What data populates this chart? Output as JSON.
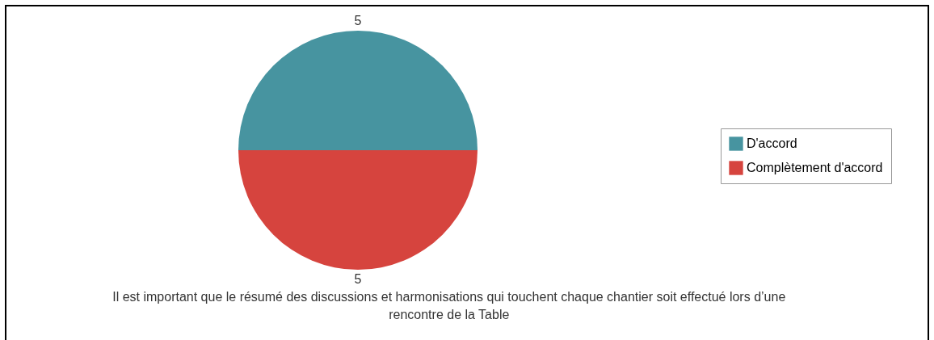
{
  "chart_data": {
    "type": "pie",
    "title": "Il est important que le résumé des discussions et harmonisations qui touchent chaque chantier soit effectué lors d’une rencontre de la Table",
    "categories": [
      "D'accord",
      "Complètement d'accord"
    ],
    "values": [
      5,
      5
    ],
    "colors": [
      "#4794a0",
      "#d6443e"
    ],
    "data_labels": true,
    "legend": "right"
  }
}
